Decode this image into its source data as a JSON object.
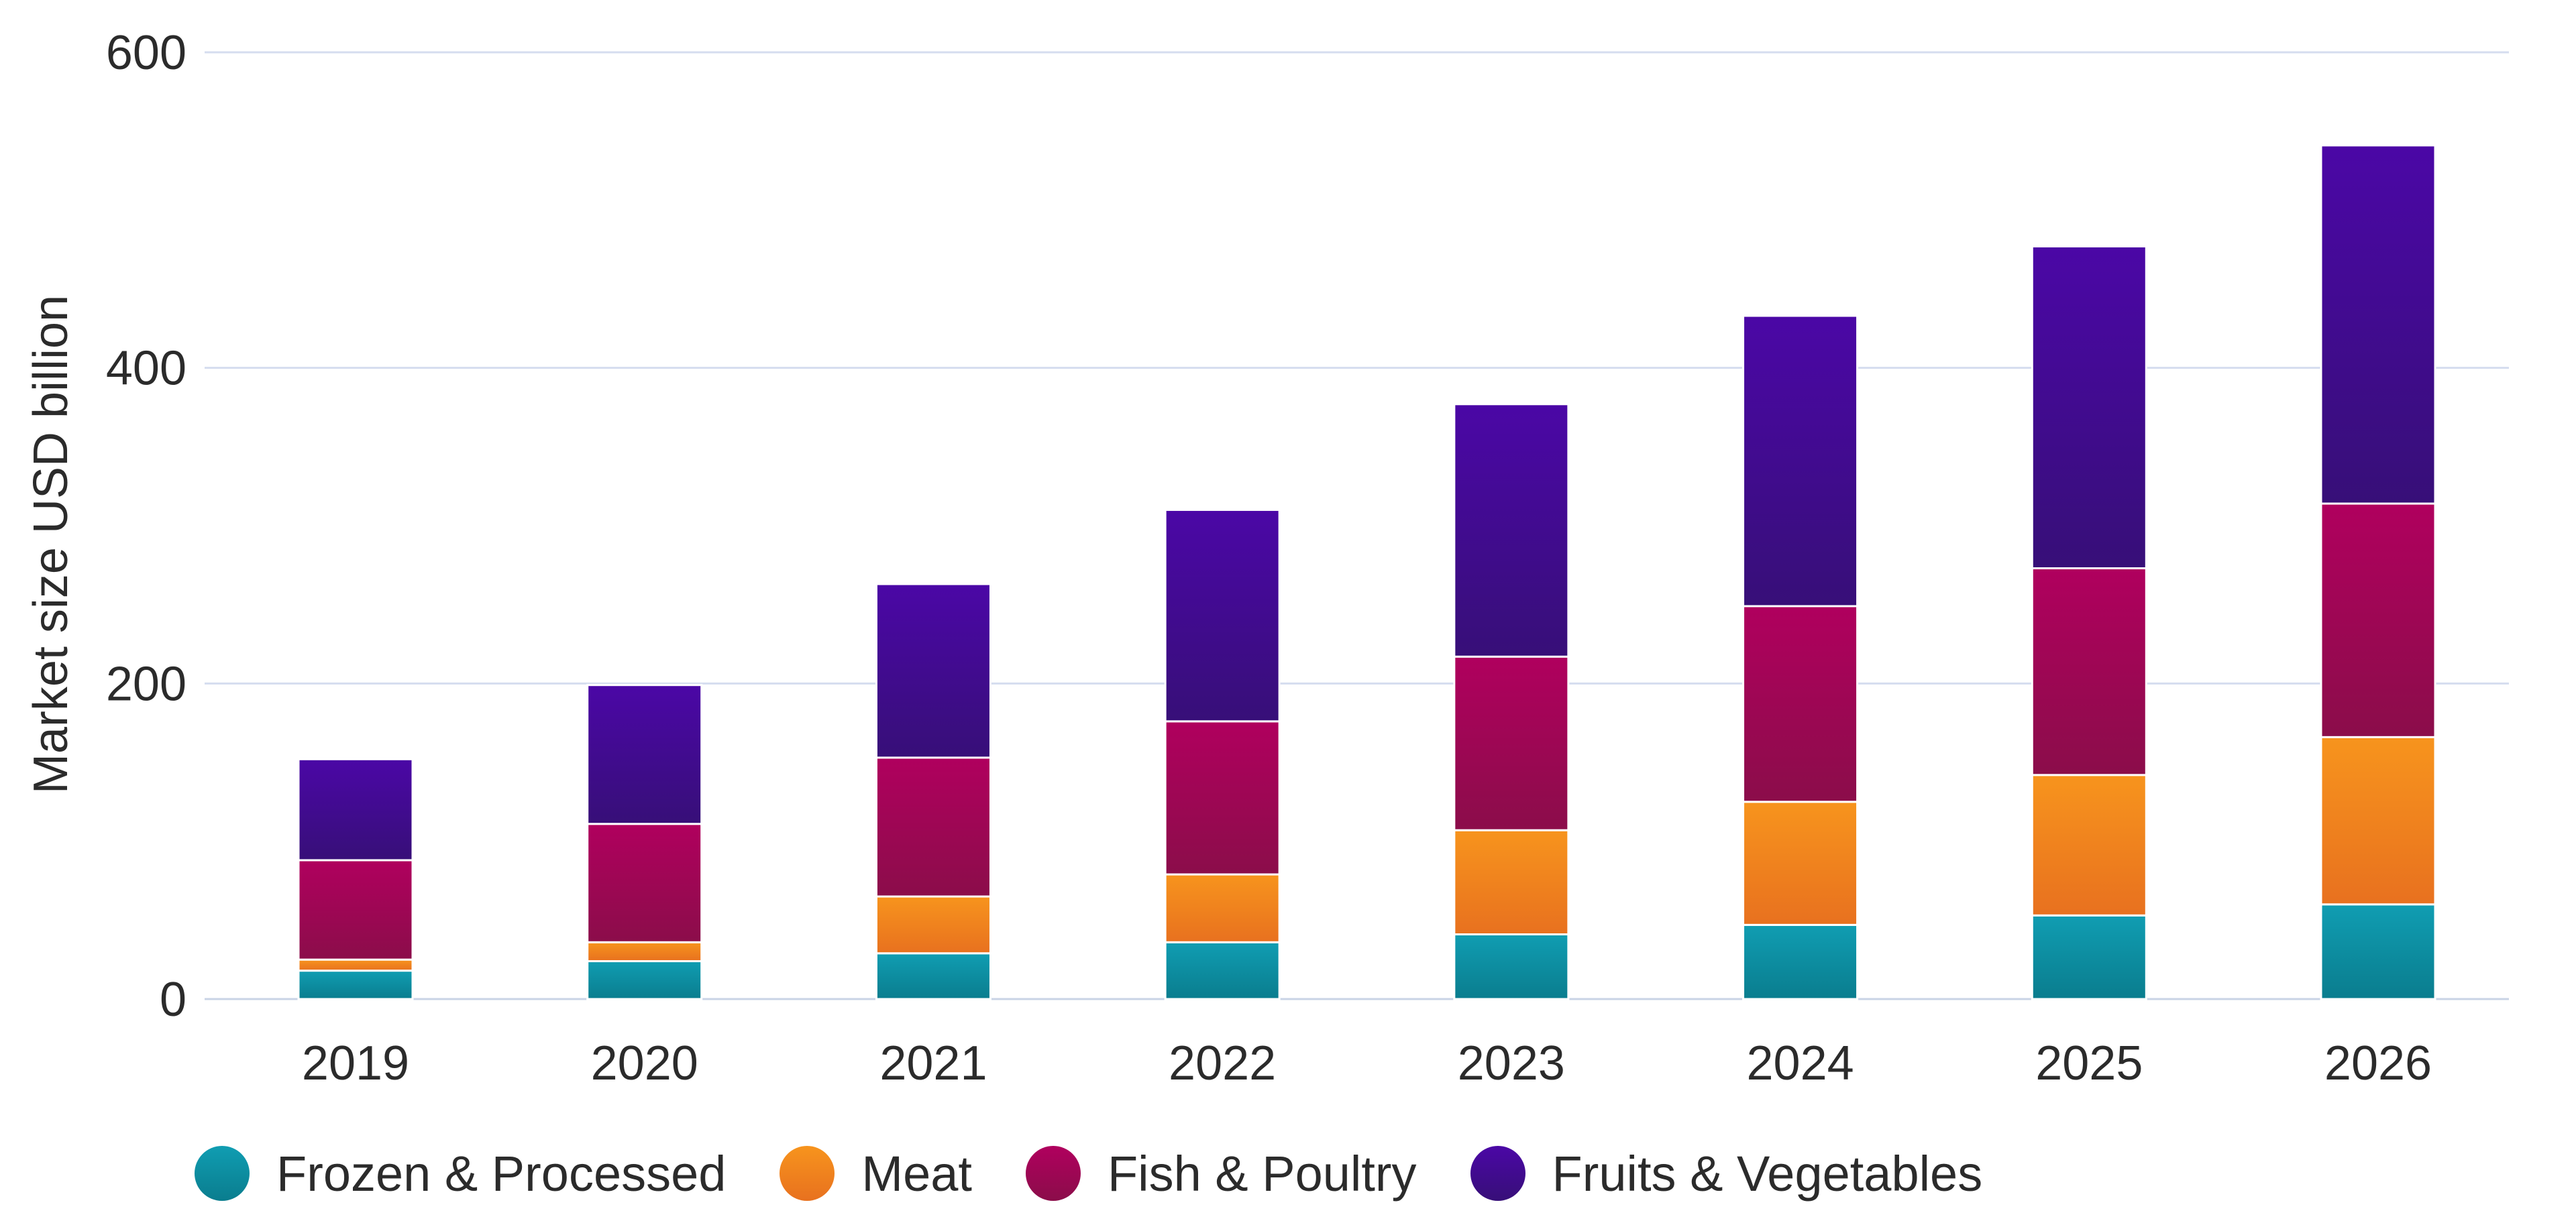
{
  "chart_data": {
    "type": "bar",
    "stacked": true,
    "categories": [
      "2019",
      "2020",
      "2021",
      "2022",
      "2023",
      "2024",
      "2025",
      "2026"
    ],
    "series": [
      {
        "name": "Frozen & Processed",
        "values": [
          18,
          24,
          29,
          36,
          41,
          47,
          53,
          60
        ],
        "color_top": "#109DB2",
        "color_bottom": "#0A7D8E"
      },
      {
        "name": "Meat",
        "values": [
          7,
          12,
          36,
          43,
          66,
          78,
          89,
          106
        ],
        "color_top": "#F7941D",
        "color_bottom": "#E8711F"
      },
      {
        "name": "Fish & Poultry",
        "values": [
          63,
          75,
          88,
          97,
          110,
          124,
          131,
          148
        ],
        "color_top": "#B0005E",
        "color_bottom": "#8B0D4A"
      },
      {
        "name": "Fruits & Vegetables",
        "values": [
          64,
          88,
          110,
          134,
          160,
          184,
          204,
          227
        ],
        "color_top": "#4B07A6",
        "color_bottom": "#370F78"
      }
    ],
    "ylabel": "Market size USD billion",
    "xlabel": "",
    "ylim": [
      0,
      600
    ],
    "yticks": [
      0,
      200,
      400,
      600
    ],
    "grid": true,
    "legend_position": "bottom-left"
  }
}
